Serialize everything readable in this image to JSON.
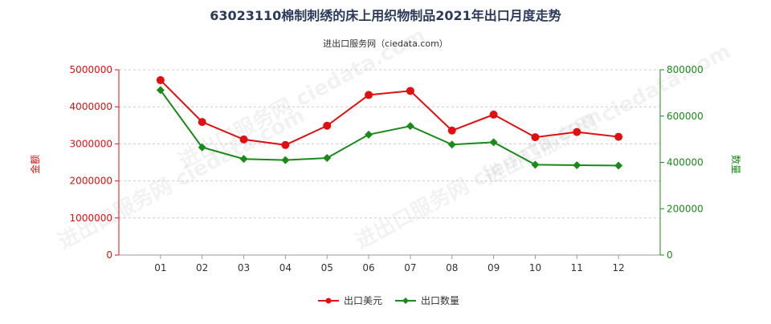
{
  "chart_data": {
    "type": "line",
    "title": "63023110棉制刺绣的床上用织物制品2021年出口月度走势",
    "subtitle": "进出口服务网（ciedata.com）",
    "watermark": "进出口服务网 ciedata.com",
    "categories": [
      "01",
      "02",
      "03",
      "04",
      "05",
      "06",
      "07",
      "08",
      "09",
      "10",
      "11",
      "12"
    ],
    "y_left": {
      "label": "金额",
      "range": [
        0,
        5000000
      ],
      "ticks": [
        0,
        1000000,
        2000000,
        3000000,
        4000000,
        5000000
      ],
      "tick_labels": [
        "0",
        "1000000",
        "2000000",
        "3000000",
        "4000000",
        "5000000"
      ],
      "color": "#e01010"
    },
    "y_right": {
      "label": "数量",
      "range": [
        0,
        800000
      ],
      "ticks": [
        0,
        200000,
        400000,
        600000,
        800000
      ],
      "tick_labels": [
        "0",
        "200000",
        "400000",
        "600000",
        "800000"
      ],
      "color": "#1a8a1a"
    },
    "series": [
      {
        "name": "出口美元",
        "axis": "left",
        "color": "#e01010",
        "marker": "circle",
        "values": [
          4720000,
          3590000,
          3120000,
          2970000,
          3490000,
          4320000,
          4430000,
          3360000,
          3790000,
          3180000,
          3320000,
          3190000
        ]
      },
      {
        "name": "出口数量",
        "axis": "right",
        "color": "#1a8a1a",
        "marker": "diamond",
        "values": [
          712000,
          465000,
          415000,
          410000,
          419000,
          520000,
          557000,
          477000,
          487000,
          390000,
          388000,
          386000
        ]
      }
    ],
    "legend_position": "bottom-center"
  }
}
